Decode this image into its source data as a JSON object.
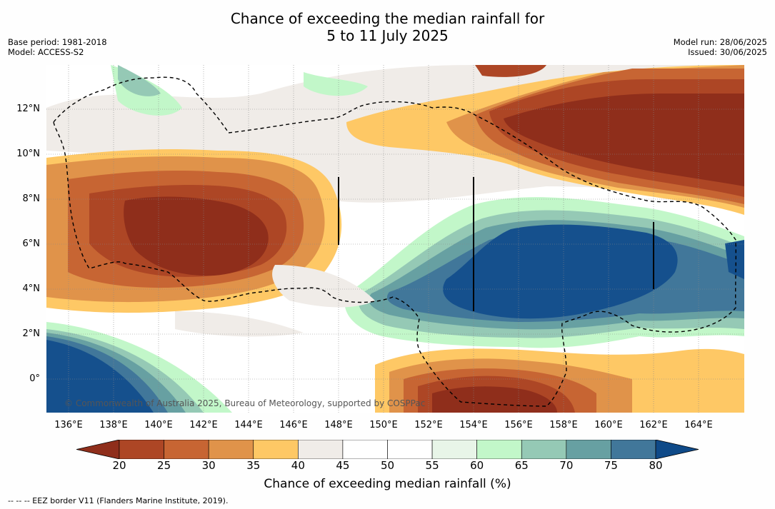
{
  "title_line1": "Chance of exceeding the median rainfall for",
  "title_line2": "5 to 11 July 2025",
  "base_period": "Base period: 1981-2018",
  "model": "Model: ACCESS-S2",
  "model_run": "Model run: 28/06/2025",
  "issued": "Issued: 30/06/2025",
  "map": {
    "lon_labels": [
      "136°E",
      "138°E",
      "140°E",
      "142°E",
      "144°E",
      "146°E",
      "148°E",
      "150°E",
      "152°E",
      "154°E",
      "156°E",
      "158°E",
      "160°E",
      "162°E",
      "164°E"
    ],
    "lat_labels": [
      "12°N",
      "10°N",
      "8°N",
      "6°N",
      "4°N",
      "2°N",
      "0°"
    ],
    "copyright": "© Commonwealth of Australia 2025, Bureau of Meteorology, supported by COSPPac"
  },
  "colorbar": {
    "ticks": [
      "20",
      "25",
      "30",
      "35",
      "40",
      "45",
      "50",
      "55",
      "60",
      "65",
      "70",
      "75",
      "80"
    ],
    "colors": [
      "#8f2e1b",
      "#ad4625",
      "#c76533",
      "#e0934a",
      "#fec865",
      "#f0ece8",
      "#ffffff",
      "#ffffff",
      "#e8f5e8",
      "#c2f7c9",
      "#95c9b5",
      "#67a0a2",
      "#41779a",
      "#15508d",
      "#0f4a88"
    ],
    "label": "Chance of exceeding median rainfall (%)"
  },
  "footer": "--  --  -- EEZ border V11 (Flanders Marine Institute, 2019)."
}
